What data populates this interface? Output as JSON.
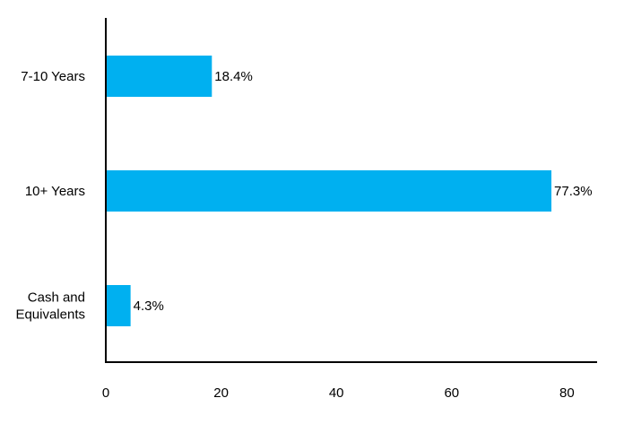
{
  "chart_data": {
    "type": "bar",
    "orientation": "horizontal",
    "title": "",
    "xlabel": "",
    "ylabel": "",
    "categories": [
      "7-10 Years",
      "10+ Years",
      "Cash and Equivalents"
    ],
    "category_lines": [
      [
        "7-10 Years"
      ],
      [
        "10+ Years"
      ],
      [
        "Cash and",
        "Equivalents"
      ]
    ],
    "values": [
      18.4,
      77.3,
      4.3
    ],
    "value_labels": [
      "18.4%",
      "77.3%",
      "4.3%"
    ],
    "xlim": [
      0,
      85
    ],
    "xticks": [
      0,
      20,
      40,
      60,
      80
    ],
    "grid": false,
    "legend": "none",
    "colors": {
      "bar": "#00B0F0",
      "axis": "#000000",
      "text": "#000000"
    }
  }
}
